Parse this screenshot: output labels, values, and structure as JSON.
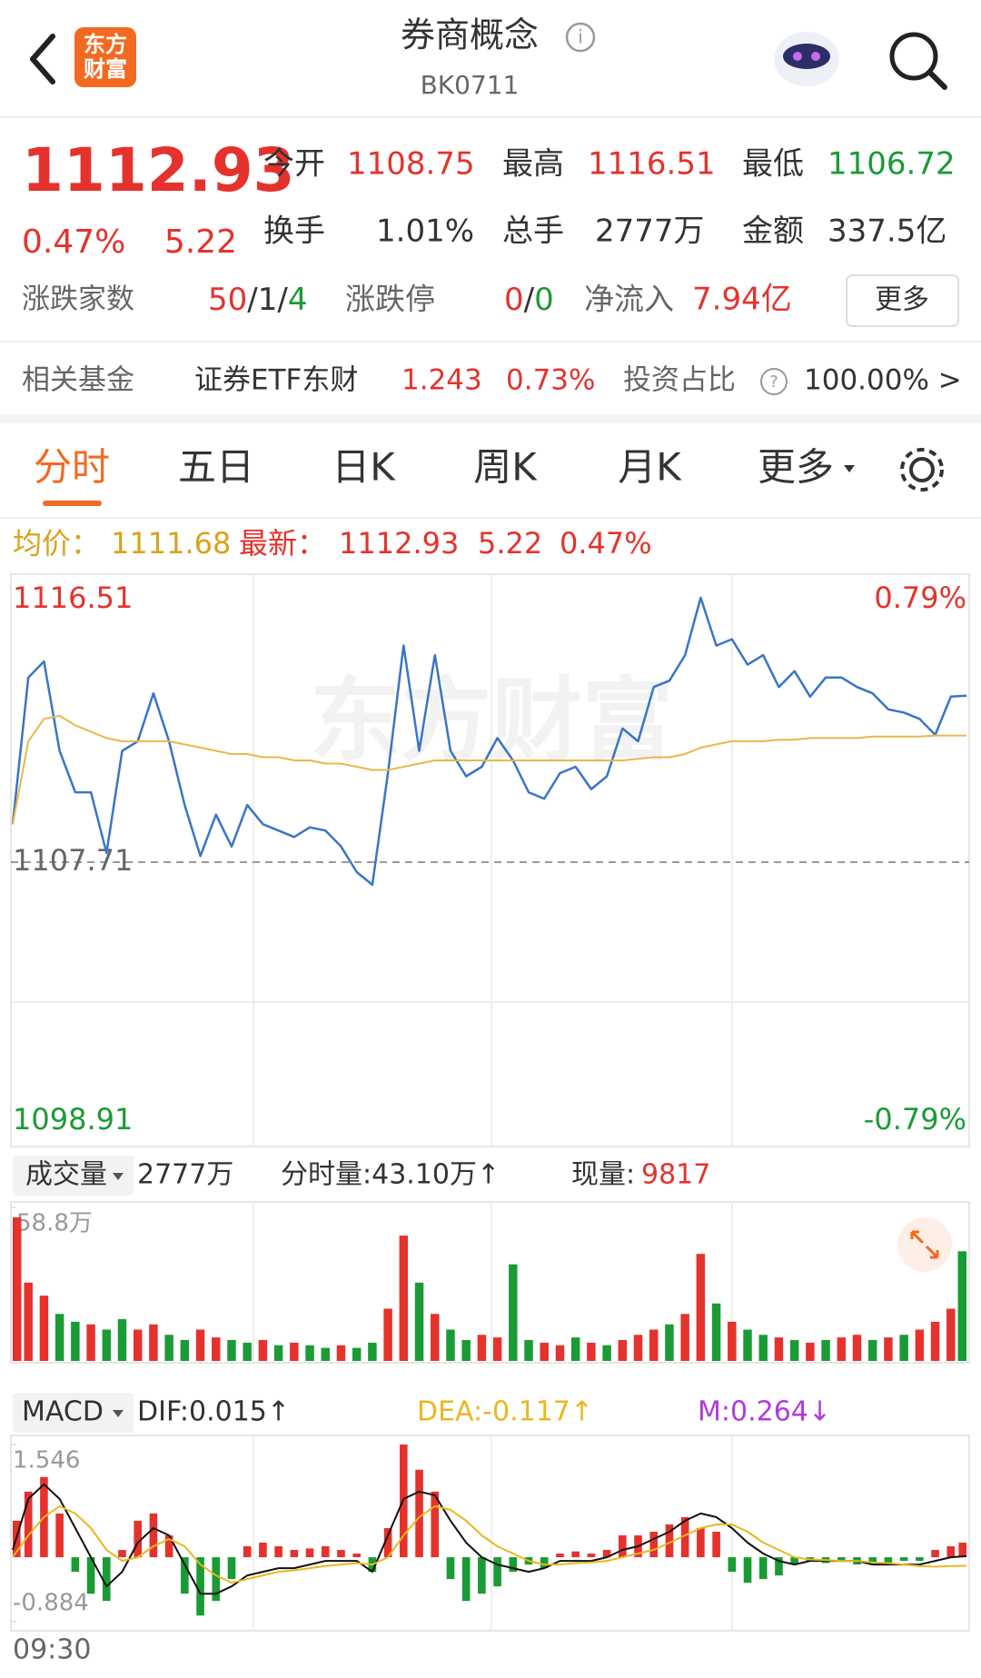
{
  "header": {
    "logo": [
      "东方",
      "财富"
    ],
    "title": "券商概念",
    "code": "BK0711"
  },
  "quote": {
    "price": "1112.93",
    "change_pct": "0.47%",
    "change": "5.22",
    "stats": [
      [
        "今开",
        "1108.75"
      ],
      [
        "最高",
        "1116.51"
      ],
      [
        "最低",
        "1106.72"
      ],
      [
        "换手",
        "1.01%"
      ],
      [
        "总手",
        "2777万"
      ],
      [
        "金额",
        "337.5亿"
      ]
    ],
    "breadth_label": "涨跌家数",
    "breadth": [
      "50",
      "/",
      "1",
      "/",
      "4"
    ],
    "limit_label": "涨跌停",
    "limit": [
      "0",
      "/",
      "0"
    ],
    "inflow_label": "净流入",
    "inflow": "7.94亿",
    "more": "更多"
  },
  "fund": {
    "label": "相关基金",
    "name": "证券ETF东财",
    "price": "1.243",
    "change": "0.73%",
    "ratio_label": "投资占比",
    "ratio": "100.00% >"
  },
  "tabs": [
    "分时",
    "五日",
    "日K",
    "周K",
    "月K",
    "更多"
  ],
  "summary": {
    "avg_label": "均价：",
    "avg": "1111.68",
    "last_label": "最新：",
    "last": "1112.93",
    "change": "5.22",
    "change_pct": "0.47%"
  },
  "time_axis": {
    "start": "09:30"
  },
  "chart_data": [
    {
      "type": "line",
      "watermark": "东方财富",
      "ylim": [
        1098.91,
        1116.51
      ],
      "yticks": [
        1116.51,
        1107.71,
        1098.91
      ],
      "y2lim": [
        -0.79,
        0.79
      ],
      "y2ticks": [
        {
          "value": 0.79,
          "label": "0.79%"
        },
        {
          "value": -0.79,
          "label": "-0.79%"
        }
      ],
      "series": [
        {
          "color": "#3a75c4",
          "values": [
            1108.9,
            1113.5,
            1114.0,
            1111.2,
            1109.9,
            1109.9,
            1108.0,
            1111.2,
            1111.5,
            1113.0,
            1111.5,
            1109.5,
            1107.9,
            1109.2,
            1108.2,
            1109.5,
            1108.9,
            1108.7,
            1108.5,
            1108.8,
            1108.7,
            1108.2,
            1107.4,
            1107.0,
            1110.5,
            1114.5,
            1111.2,
            1114.2,
            1111.2,
            1110.4,
            1110.7,
            1111.6,
            1110.9,
            1109.9,
            1109.7,
            1110.5,
            1110.7,
            1110.0,
            1110.4,
            1111.9,
            1111.5,
            1113.2,
            1113.4,
            1114.2,
            1116.0,
            1114.5,
            1114.7,
            1113.9,
            1114.2,
            1113.2,
            1113.7,
            1112.9,
            1113.5,
            1113.5,
            1113.2,
            1113.0,
            1112.5,
            1112.4,
            1112.2,
            1111.7,
            1112.9,
            1112.93
          ]
        },
        {
          "color": "#e8b84a",
          "values": [
            1108.9,
            1111.5,
            1112.2,
            1112.3,
            1112.0,
            1111.8,
            1111.6,
            1111.5,
            1111.5,
            1111.5,
            1111.5,
            1111.4,
            1111.3,
            1111.2,
            1111.1,
            1111.1,
            1111.0,
            1111.0,
            1110.9,
            1110.9,
            1110.8,
            1110.8,
            1110.7,
            1110.6,
            1110.6,
            1110.7,
            1110.8,
            1110.9,
            1110.9,
            1110.9,
            1110.9,
            1110.9,
            1110.9,
            1110.9,
            1110.9,
            1110.9,
            1110.9,
            1110.9,
            1110.9,
            1110.9,
            1110.95,
            1111.0,
            1111.0,
            1111.1,
            1111.3,
            1111.4,
            1111.5,
            1111.5,
            1111.5,
            1111.55,
            1111.55,
            1111.6,
            1111.6,
            1111.6,
            1111.6,
            1111.65,
            1111.65,
            1111.65,
            1111.65,
            1111.68,
            1111.68,
            1111.68
          ]
        }
      ]
    },
    {
      "type": "bar",
      "title": "成交量",
      "stats": [
        "2777万",
        "分时量:43.10万↑",
        "现量:"
      ],
      "current": "9817",
      "ylim": [
        0,
        58.8
      ],
      "yticks": [
        {
          "value": 58.8,
          "label": "58.8万"
        }
      ],
      "up_color": "#e5322d",
      "down_color": "#1a9b35",
      "values": [
        55,
        30,
        25,
        18,
        15,
        14,
        12,
        16,
        12,
        14,
        10,
        8,
        12,
        9,
        8,
        7,
        8,
        6,
        7,
        6,
        5,
        6,
        5,
        7,
        20,
        48,
        30,
        18,
        12,
        8,
        10,
        9,
        37,
        8,
        7,
        6,
        9,
        7,
        6,
        8,
        10,
        12,
        14,
        18,
        41,
        22,
        15,
        12,
        10,
        9,
        8,
        7,
        8,
        9,
        10,
        8,
        9,
        10,
        12,
        15,
        20,
        42
      ],
      "up": [
        true,
        true,
        true,
        false,
        false,
        true,
        false,
        false,
        true,
        true,
        false,
        false,
        true,
        true,
        false,
        false,
        true,
        false,
        true,
        false,
        false,
        true,
        false,
        false,
        true,
        true,
        false,
        true,
        false,
        false,
        true,
        true,
        false,
        false,
        true,
        true,
        false,
        true,
        false,
        true,
        true,
        true,
        false,
        true,
        true,
        false,
        true,
        false,
        false,
        true,
        false,
        true,
        false,
        true,
        true,
        false,
        true,
        false,
        true,
        true,
        true,
        false
      ]
    },
    {
      "type": "macd",
      "title": "MACD",
      "ylim": [
        -0.884,
        1.546
      ],
      "yticks": [
        1.546,
        -0.884
      ],
      "pos_color": "#e5322d",
      "neg_color": "#1a9b35",
      "histogram": [
        0.5,
        0.9,
        1.1,
        0.6,
        -0.2,
        -0.5,
        -0.6,
        0.1,
        0.5,
        0.6,
        0.3,
        -0.5,
        -0.8,
        -0.6,
        -0.3,
        0.15,
        0.2,
        0.15,
        0.1,
        0.12,
        0.15,
        0.1,
        0.05,
        -0.2,
        0.4,
        1.546,
        1.2,
        0.9,
        -0.3,
        -0.6,
        -0.5,
        -0.4,
        -0.2,
        -0.1,
        -0.15,
        0.05,
        0.08,
        0.05,
        0.1,
        0.3,
        0.3,
        0.35,
        0.45,
        0.55,
        0.4,
        0.35,
        -0.2,
        -0.35,
        -0.3,
        -0.25,
        -0.1,
        -0.05,
        -0.08,
        -0.05,
        -0.1,
        -0.08,
        -0.1,
        -0.05,
        -0.05,
        0.1,
        0.15,
        0.2
      ],
      "series": [
        {
          "name": "DIF:0.015↑",
          "color": "#111111",
          "values": [
            0.1,
            0.8,
            1.0,
            0.8,
            0.4,
            0.0,
            -0.4,
            -0.2,
            0.2,
            0.4,
            0.3,
            -0.1,
            -0.5,
            -0.5,
            -0.4,
            -0.25,
            -0.2,
            -0.15,
            -0.15,
            -0.1,
            -0.05,
            -0.05,
            -0.05,
            -0.2,
            0.3,
            0.8,
            0.9,
            0.85,
            0.5,
            0.2,
            0.0,
            -0.1,
            -0.15,
            -0.2,
            -0.15,
            -0.05,
            -0.05,
            -0.05,
            0.0,
            0.1,
            0.15,
            0.25,
            0.35,
            0.5,
            0.6,
            0.55,
            0.4,
            0.2,
            0.05,
            -0.05,
            -0.1,
            -0.05,
            -0.05,
            -0.05,
            -0.05,
            -0.1,
            -0.1,
            -0.1,
            -0.1,
            -0.05,
            0.0,
            0.015
          ]
        },
        {
          "name": "DEA:-0.117↑",
          "color": "#e8b820",
          "values": [
            0.0,
            0.3,
            0.55,
            0.7,
            0.6,
            0.4,
            0.1,
            -0.05,
            0.0,
            0.15,
            0.25,
            0.15,
            -0.1,
            -0.25,
            -0.35,
            -0.3,
            -0.25,
            -0.2,
            -0.18,
            -0.15,
            -0.12,
            -0.1,
            -0.08,
            -0.1,
            0.0,
            0.3,
            0.55,
            0.7,
            0.65,
            0.5,
            0.3,
            0.15,
            0.05,
            -0.05,
            -0.1,
            -0.1,
            -0.08,
            -0.07,
            -0.05,
            0.0,
            0.05,
            0.1,
            0.2,
            0.3,
            0.4,
            0.45,
            0.45,
            0.35,
            0.2,
            0.1,
            0.0,
            -0.03,
            -0.04,
            -0.05,
            -0.05,
            -0.07,
            -0.08,
            -0.1,
            -0.12,
            -0.13,
            -0.12,
            -0.117
          ]
        }
      ],
      "m_label": "M:0.264↓",
      "m_color": "#b03adf"
    }
  ]
}
